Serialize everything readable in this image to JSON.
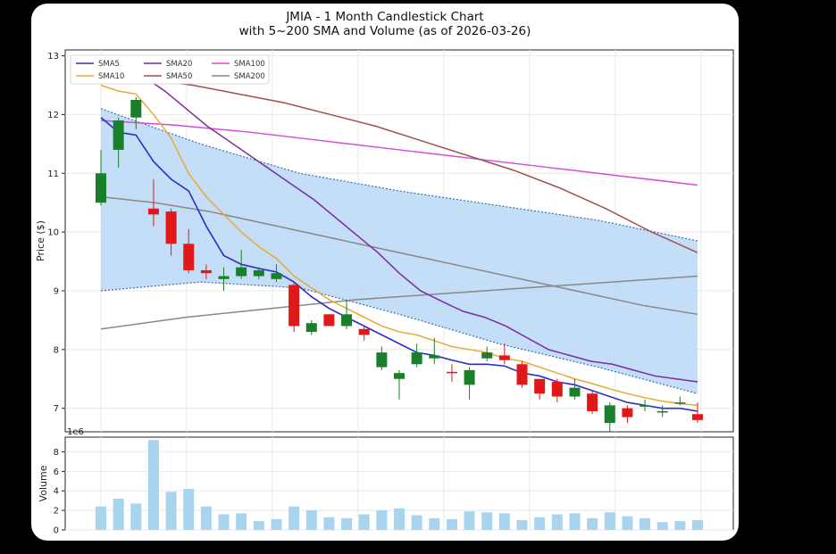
{
  "chart_data": {
    "type": "candlestick",
    "title_line1": "JMIA - 1 Month Candlestick Chart",
    "title_line2": "with 5~200 SMA and Volume (as of 2026-03-26)",
    "ylabel": "Price ($)",
    "ylim": [
      6.6,
      13.1
    ],
    "yticks": [
      "7",
      "8",
      "9",
      "10",
      "11",
      "12",
      "13"
    ],
    "volume_ylabel": "Volume",
    "volume_exponent": "1e6",
    "volume_ylim": [
      0,
      9.5
    ],
    "volume_yticks": [
      "0",
      "2",
      "4",
      "6",
      "8"
    ],
    "legend": [
      {
        "name": "SMA5",
        "color": "#2b2fc8"
      },
      {
        "name": "SMA10",
        "color": "#e8a838"
      },
      {
        "name": "SMA20",
        "color": "#7b2c9e"
      },
      {
        "name": "SMA50",
        "color": "#a05050"
      },
      {
        "name": "SMA100",
        "color": "#d94ad9"
      },
      {
        "name": "SMA200",
        "color": "#888888"
      }
    ],
    "colors": {
      "up": "#1a7f2a",
      "down": "#e01818",
      "band": "#b8d8f4",
      "volume": "#a8d4ee"
    },
    "candles": [
      {
        "o": 10.5,
        "h": 11.4,
        "l": 10.45,
        "c": 11.0
      },
      {
        "o": 11.4,
        "h": 11.95,
        "l": 11.1,
        "c": 11.9
      },
      {
        "o": 11.95,
        "h": 12.3,
        "l": 11.75,
        "c": 12.25
      },
      {
        "o": 10.4,
        "h": 10.9,
        "l": 10.1,
        "c": 10.3
      },
      {
        "o": 10.35,
        "h": 10.4,
        "l": 9.6,
        "c": 9.8
      },
      {
        "o": 9.8,
        "h": 10.05,
        "l": 9.3,
        "c": 9.35
      },
      {
        "o": 9.35,
        "h": 9.45,
        "l": 9.2,
        "c": 9.3
      },
      {
        "o": 9.2,
        "h": 9.4,
        "l": 9.0,
        "c": 9.25
      },
      {
        "o": 9.25,
        "h": 9.7,
        "l": 9.2,
        "c": 9.4
      },
      {
        "o": 9.25,
        "h": 9.4,
        "l": 9.2,
        "c": 9.35
      },
      {
        "o": 9.2,
        "h": 9.45,
        "l": 9.15,
        "c": 9.3
      },
      {
        "o": 9.1,
        "h": 9.15,
        "l": 8.3,
        "c": 8.4
      },
      {
        "o": 8.3,
        "h": 8.5,
        "l": 8.25,
        "c": 8.45
      },
      {
        "o": 8.6,
        "h": 8.6,
        "l": 8.4,
        "c": 8.4
      },
      {
        "o": 8.4,
        "h": 8.85,
        "l": 8.35,
        "c": 8.6
      },
      {
        "o": 8.35,
        "h": 8.4,
        "l": 8.15,
        "c": 8.25
      },
      {
        "o": 7.7,
        "h": 8.05,
        "l": 7.65,
        "c": 7.95
      },
      {
        "o": 7.5,
        "h": 7.65,
        "l": 7.15,
        "c": 7.6
      },
      {
        "o": 7.75,
        "h": 8.1,
        "l": 7.7,
        "c": 7.95
      },
      {
        "o": 7.85,
        "h": 8.2,
        "l": 7.75,
        "c": 7.9
      },
      {
        "o": 7.62,
        "h": 7.75,
        "l": 7.45,
        "c": 7.6
      },
      {
        "o": 7.4,
        "h": 7.7,
        "l": 7.15,
        "c": 7.65
      },
      {
        "o": 7.85,
        "h": 8.05,
        "l": 7.8,
        "c": 7.95
      },
      {
        "o": 7.9,
        "h": 8.1,
        "l": 7.75,
        "c": 7.82
      },
      {
        "o": 7.75,
        "h": 7.8,
        "l": 7.35,
        "c": 7.4
      },
      {
        "o": 7.5,
        "h": 7.5,
        "l": 7.15,
        "c": 7.25
      },
      {
        "o": 7.45,
        "h": 7.5,
        "l": 7.1,
        "c": 7.2
      },
      {
        "o": 7.2,
        "h": 7.5,
        "l": 7.15,
        "c": 7.35
      },
      {
        "o": 7.25,
        "h": 7.3,
        "l": 6.9,
        "c": 6.95
      },
      {
        "o": 6.75,
        "h": 7.1,
        "l": 6.6,
        "c": 7.05
      },
      {
        "o": 7.0,
        "h": 7.05,
        "l": 6.75,
        "c": 6.85
      },
      {
        "o": 7.05,
        "h": 7.15,
        "l": 6.95,
        "c": 7.05
      },
      {
        "o": 6.95,
        "h": 7.05,
        "l": 6.85,
        "c": 6.95
      },
      {
        "o": 7.1,
        "h": 7.2,
        "l": 7.05,
        "c": 7.1
      },
      {
        "o": 6.9,
        "h": 7.1,
        "l": 6.75,
        "c": 6.8
      }
    ],
    "volume": [
      2.4,
      3.2,
      2.7,
      9.2,
      3.9,
      4.2,
      2.4,
      1.6,
      1.7,
      0.9,
      1.1,
      2.4,
      2.0,
      1.3,
      1.2,
      1.6,
      2.0,
      2.2,
      1.5,
      1.2,
      1.1,
      1.9,
      1.8,
      1.7,
      1.0,
      1.3,
      1.6,
      1.7,
      1.2,
      1.8,
      1.4,
      1.2,
      0.8,
      0.9,
      1.0
    ],
    "sma5": [
      11.95,
      11.7,
      11.65,
      11.2,
      10.9,
      10.7,
      10.1,
      9.6,
      9.45,
      9.38,
      9.32,
      9.15,
      8.9,
      8.7,
      8.55,
      8.4,
      8.25,
      8.1,
      7.95,
      7.9,
      7.82,
      7.75,
      7.75,
      7.72,
      7.6,
      7.55,
      7.45,
      7.4,
      7.3,
      7.2,
      7.1,
      7.05,
      7.0,
      7.0,
      6.95
    ],
    "sma10": [
      12.5,
      12.4,
      12.35,
      12.0,
      11.6,
      11.0,
      10.6,
      10.3,
      10.0,
      9.75,
      9.55,
      9.25,
      9.05,
      8.85,
      8.7,
      8.55,
      8.4,
      8.3,
      8.25,
      8.15,
      8.05,
      8.0,
      7.95,
      7.85,
      7.8,
      7.7,
      7.6,
      7.5,
      7.42,
      7.33,
      7.25,
      7.18,
      7.12,
      7.08,
      7.05
    ],
    "sma20": [
      12.85,
      12.75,
      12.65,
      12.4,
      12.1,
      11.8,
      11.55,
      11.3,
      11.05,
      10.8,
      10.55,
      10.25,
      9.95,
      9.65,
      9.3,
      9.0,
      8.82,
      8.65,
      8.55,
      8.4,
      8.2,
      8.0,
      7.9,
      7.8,
      7.75,
      7.65,
      7.55,
      7.5,
      7.45
    ],
    "sma50": [
      12.7,
      12.6,
      12.5,
      12.35,
      12.2,
      12.0,
      11.8,
      11.55,
      11.3,
      11.05,
      10.75,
      10.4,
      10.0,
      9.65
    ],
    "sma100": [
      11.9,
      11.82,
      11.7,
      11.55,
      11.4,
      11.25,
      11.1,
      10.95,
      10.8
    ],
    "sma200": [
      10.6,
      10.5,
      10.35,
      10.15,
      9.95,
      9.75,
      9.55,
      9.35,
      9.15,
      8.95,
      8.75,
      8.6
    ],
    "sma200b": [
      8.35,
      8.55,
      8.7,
      8.85,
      8.95,
      9.05,
      9.15,
      9.25
    ],
    "band_upper": [
      12.1,
      11.5,
      11.0,
      10.7,
      10.45,
      10.2,
      9.85
    ],
    "band_lower": [
      9.0,
      9.15,
      9.05,
      8.6,
      8.1,
      7.7,
      7.25
    ]
  }
}
